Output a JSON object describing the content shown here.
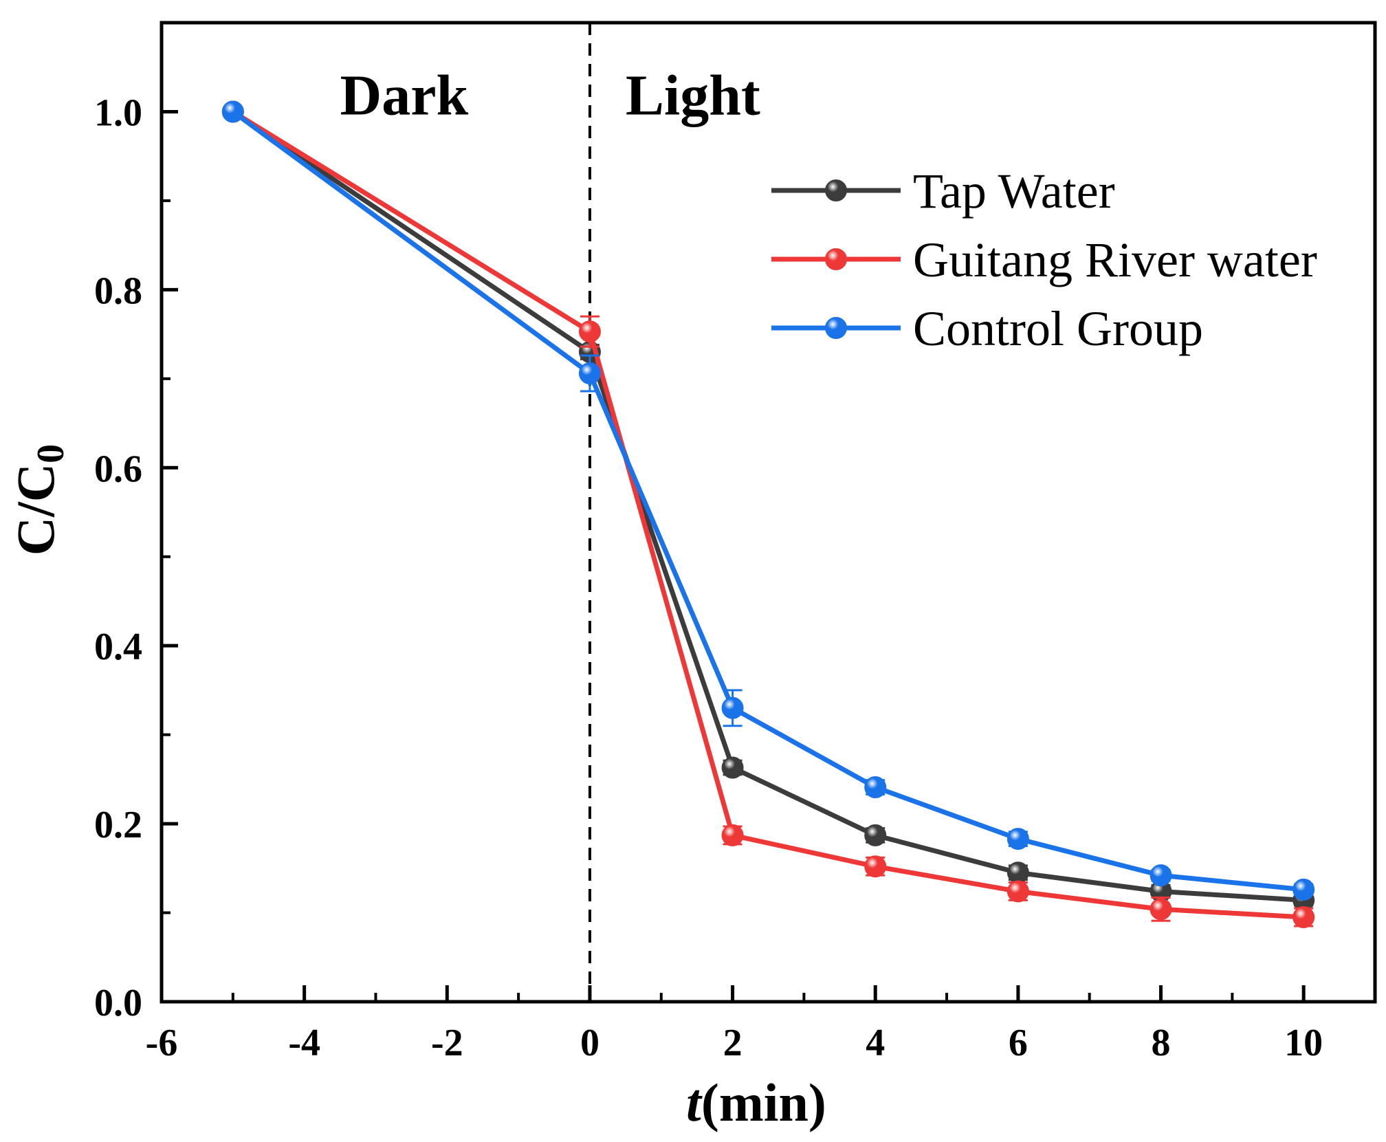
{
  "chart_data": {
    "type": "line",
    "title": "",
    "xlabel": "t(min)",
    "xlabel_parts": {
      "italic": "t",
      "rest": "(min)"
    },
    "ylabel": "C/C0",
    "ylabel_parts": {
      "main": "C/C",
      "sub": "0"
    },
    "xlim": [
      -6,
      11
    ],
    "ylim": [
      0.0,
      1.1
    ],
    "xticks": [
      -6,
      -4,
      -2,
      0,
      2,
      4,
      6,
      8,
      10
    ],
    "xtick_labels": [
      "-6",
      "-4",
      "-2",
      "0",
      "2",
      "4",
      "6",
      "8",
      "10"
    ],
    "yticks": [
      0.0,
      0.2,
      0.4,
      0.6,
      0.8,
      1.0
    ],
    "ytick_labels": [
      "0.0",
      "0.2",
      "0.4",
      "0.6",
      "0.8",
      "1.0"
    ],
    "grid": false,
    "legend_position": "top-right",
    "divider_x": 0,
    "region_labels": [
      {
        "text": "Dark",
        "x": -3.5,
        "y": 1.02
      },
      {
        "text": "Light",
        "x": 0.5,
        "y": 1.02
      }
    ],
    "x": [
      -5,
      0,
      2,
      4,
      6,
      8,
      10
    ],
    "series": [
      {
        "name": "Tap Water",
        "color": "#3c3c3c",
        "values": [
          1.0,
          0.73,
          0.263,
          0.187,
          0.145,
          0.124,
          0.114
        ],
        "errors": [
          0.0,
          0.008,
          0.008,
          0.008,
          0.008,
          0.007,
          0.006
        ]
      },
      {
        "name": "Guitang River water",
        "color": "#ee3838",
        "values": [
          1.0,
          0.753,
          0.187,
          0.152,
          0.124,
          0.104,
          0.095
        ],
        "errors": [
          0.0,
          0.017,
          0.01,
          0.01,
          0.01,
          0.013,
          0.01
        ]
      },
      {
        "name": "Control Group",
        "color": "#1a73e8",
        "values": [
          1.0,
          0.706,
          0.33,
          0.241,
          0.183,
          0.142,
          0.126
        ],
        "errors": [
          0.0,
          0.02,
          0.02,
          0.008,
          0.008,
          0.006,
          0.006
        ]
      }
    ]
  }
}
